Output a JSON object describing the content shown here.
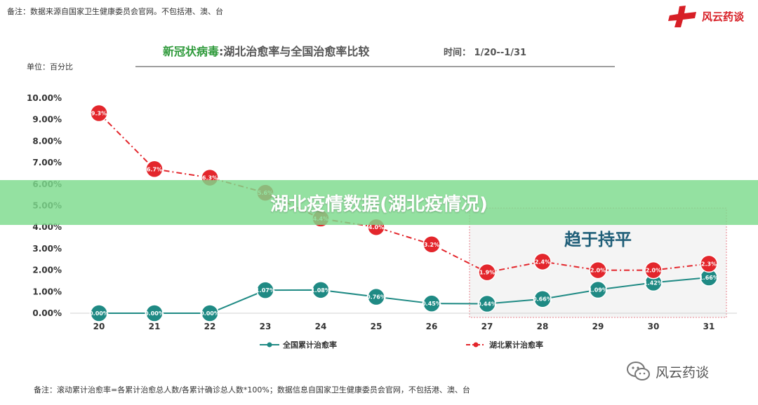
{
  "header": {
    "top_note": "备注：数据来源自国家卫生健康委员会官网。不包括港、澳、台",
    "logo_text": "风云药谈",
    "title_part1": "新冠状病毒",
    "title_part2": ":湖北治愈率与全国治愈率比较",
    "time_label": "时间：",
    "time_range": "1/20--1/31",
    "unit": "单位：百分比"
  },
  "banner": {
    "text": "湖北疫情数据(湖北疫情况)"
  },
  "footer": {
    "note": "备注：滚动累计治愈率=各累计治愈总人数/各累计确诊总人数*100%；数据信息自国家卫生健康委员会官网，不包括港、澳、台",
    "wechat_text": "风云药谈"
  },
  "colors": {
    "national": "#1f8a84",
    "hubei": "#e3262c",
    "title_green": "#2f9a3b",
    "highlight_box": "#e7828c"
  },
  "chart_data": {
    "type": "line",
    "x": [
      "20",
      "21",
      "22",
      "23",
      "24",
      "25",
      "26",
      "27",
      "28",
      "29",
      "30",
      "31"
    ],
    "yticks": [
      "10.00%",
      "9.00%",
      "8.00%",
      "7.00%",
      "6.00%",
      "5.00%",
      "4.00%",
      "3.00%",
      "2.00%",
      "1.00%",
      "0.00%"
    ],
    "ylim": [
      0,
      10
    ],
    "grid": false,
    "legend": "bottom",
    "series": [
      {
        "name": "全国累计治愈率",
        "values": [
          0.0,
          0.0,
          0.0,
          1.07,
          1.08,
          0.76,
          0.45,
          0.44,
          0.66,
          1.09,
          1.42,
          1.66
        ],
        "labels": [
          "0.00%",
          "0.00%",
          "0.00%",
          "1.07%",
          "1.08%",
          "0.76%",
          "0.45%",
          "0.44%",
          "0.66%",
          "1.09%",
          "1.42%",
          "1.66%"
        ]
      },
      {
        "name": "湖北累计治愈率",
        "values": [
          9.3,
          6.7,
          6.3,
          5.6,
          4.4,
          4.0,
          3.2,
          1.9,
          2.4,
          2.0,
          2.0,
          2.3
        ],
        "labels": [
          "9.3%",
          "6.7%",
          "6.3%",
          "5.6%",
          "4.4%",
          "4.0%",
          "3.2%",
          "1.9%",
          "2.4%",
          "2.0%",
          "2.0%",
          "2.3%"
        ]
      }
    ],
    "annotation": {
      "text": "趋于持平",
      "from_index": 7,
      "to_index": 11
    }
  }
}
